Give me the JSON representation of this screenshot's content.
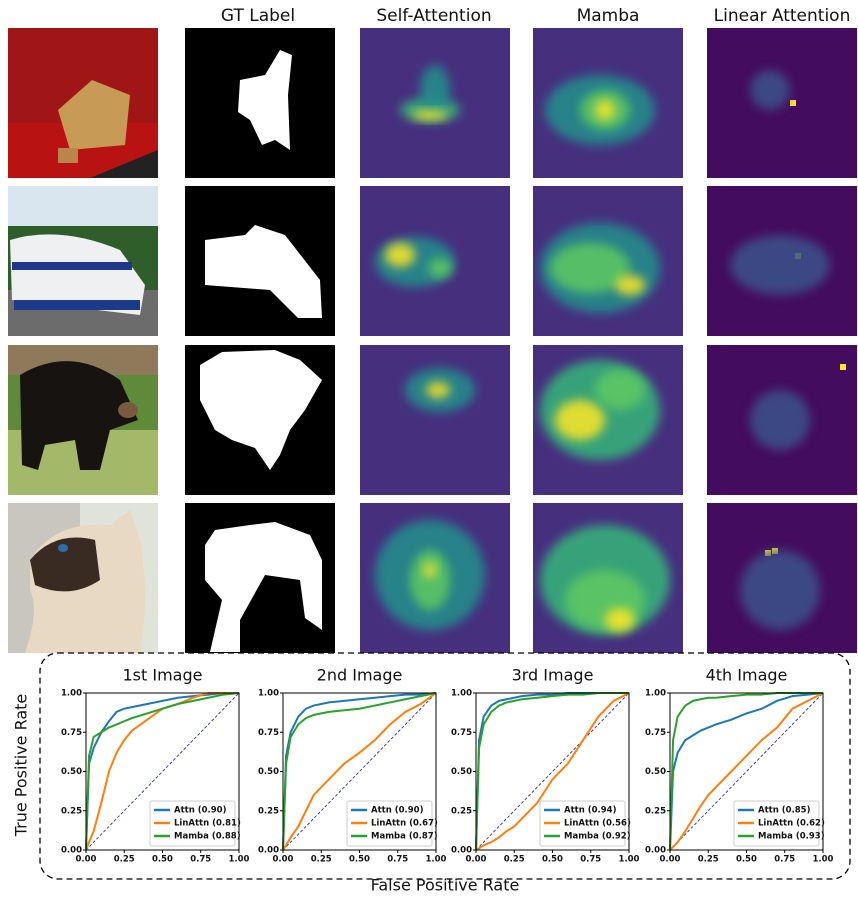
{
  "figure": {
    "column_headers": [
      "GT Label",
      "Self-Attention",
      "Mamba",
      "Linear Attention"
    ]
  },
  "xlabel": "False Positive Rate",
  "ylabel": "True Positive Rate",
  "chart_data": [
    {
      "type": "line",
      "title": "1st Image",
      "x": [
        0,
        0.02,
        0.05,
        0.1,
        0.15,
        0.2,
        0.25,
        0.3,
        0.4,
        0.5,
        0.6,
        0.7,
        0.8,
        0.9,
        1.0
      ],
      "series": [
        {
          "name": "Attn (0.90)",
          "color": "#1f77b4",
          "values": [
            0,
            0.55,
            0.65,
            0.75,
            0.82,
            0.88,
            0.9,
            0.91,
            0.93,
            0.95,
            0.97,
            0.98,
            0.99,
            1,
            1
          ]
        },
        {
          "name": "LinAttn (0.81)",
          "color": "#ff7f0e",
          "values": [
            0,
            0.05,
            0.12,
            0.3,
            0.5,
            0.62,
            0.7,
            0.76,
            0.83,
            0.9,
            0.93,
            0.97,
            1,
            1,
            1
          ]
        },
        {
          "name": "Mamba (0.88)",
          "color": "#2ca02c",
          "values": [
            0,
            0.6,
            0.72,
            0.75,
            0.78,
            0.8,
            0.82,
            0.84,
            0.87,
            0.9,
            0.93,
            0.95,
            0.97,
            0.99,
            1
          ]
        }
      ],
      "xlim": [
        0,
        1
      ],
      "ylim": [
        0,
        1
      ],
      "xticks": [
        {
          "value": 0,
          "label": "0.00"
        },
        {
          "value": 0.25,
          "label": "0.25"
        },
        {
          "value": 0.5,
          "label": "0.50"
        },
        {
          "value": 0.75,
          "label": "0.75"
        },
        {
          "value": 1,
          "label": "1.00"
        }
      ],
      "yticks": [
        {
          "value": 0,
          "label": "0.00"
        },
        {
          "value": 0.25,
          "label": "0.25"
        },
        {
          "value": 0.5,
          "label": "0.50"
        },
        {
          "value": 0.75,
          "label": "0.75"
        },
        {
          "value": 1,
          "label": "1.00"
        }
      ],
      "legend": "lower right"
    },
    {
      "type": "line",
      "title": "2nd Image",
      "x": [
        0,
        0.02,
        0.05,
        0.1,
        0.15,
        0.2,
        0.25,
        0.3,
        0.4,
        0.5,
        0.6,
        0.7,
        0.8,
        0.9,
        1.0
      ],
      "series": [
        {
          "name": "Attn (0.90)",
          "color": "#1f77b4",
          "values": [
            0,
            0.6,
            0.75,
            0.85,
            0.9,
            0.92,
            0.93,
            0.94,
            0.95,
            0.96,
            0.97,
            0.98,
            0.99,
            0.99,
            1
          ]
        },
        {
          "name": "LinAttn (0.67)",
          "color": "#ff7f0e",
          "values": [
            0,
            0.03,
            0.08,
            0.15,
            0.25,
            0.35,
            0.4,
            0.45,
            0.55,
            0.62,
            0.7,
            0.8,
            0.88,
            0.93,
            1
          ]
        },
        {
          "name": "Mamba (0.87)",
          "color": "#2ca02c",
          "values": [
            0,
            0.55,
            0.72,
            0.8,
            0.84,
            0.86,
            0.87,
            0.88,
            0.89,
            0.9,
            0.92,
            0.94,
            0.96,
            0.98,
            1
          ]
        }
      ],
      "xlim": [
        0,
        1
      ],
      "ylim": [
        0,
        1
      ],
      "xticks": [
        {
          "value": 0,
          "label": "0.00"
        },
        {
          "value": 0.25,
          "label": "0.25"
        },
        {
          "value": 0.5,
          "label": "0.50"
        },
        {
          "value": 0.75,
          "label": "0.75"
        },
        {
          "value": 1,
          "label": "1.00"
        }
      ],
      "yticks": [
        {
          "value": 0,
          "label": "0.00"
        },
        {
          "value": 0.25,
          "label": "0.25"
        },
        {
          "value": 0.5,
          "label": "0.50"
        },
        {
          "value": 0.75,
          "label": "0.75"
        },
        {
          "value": 1,
          "label": "1.00"
        }
      ],
      "legend": "lower right"
    },
    {
      "type": "line",
      "title": "3rd Image",
      "x": [
        0,
        0.02,
        0.05,
        0.1,
        0.15,
        0.2,
        0.25,
        0.3,
        0.4,
        0.5,
        0.6,
        0.7,
        0.8,
        0.9,
        1.0
      ],
      "series": [
        {
          "name": "Attn (0.94)",
          "color": "#1f77b4",
          "values": [
            0,
            0.7,
            0.85,
            0.92,
            0.95,
            0.96,
            0.97,
            0.98,
            0.99,
            0.99,
            1,
            1,
            1,
            1,
            1
          ]
        },
        {
          "name": "LinAttn (0.56)",
          "color": "#ff7f0e",
          "values": [
            0,
            0.01,
            0.03,
            0.05,
            0.08,
            0.12,
            0.15,
            0.2,
            0.3,
            0.45,
            0.55,
            0.7,
            0.85,
            0.95,
            1
          ]
        },
        {
          "name": "Mamba (0.92)",
          "color": "#2ca02c",
          "values": [
            0,
            0.65,
            0.8,
            0.88,
            0.92,
            0.94,
            0.95,
            0.96,
            0.97,
            0.98,
            0.99,
            0.99,
            1,
            1,
            1
          ]
        }
      ],
      "xlim": [
        0,
        1
      ],
      "ylim": [
        0,
        1
      ],
      "xticks": [
        {
          "value": 0,
          "label": "0.00"
        },
        {
          "value": 0.25,
          "label": "0.25"
        },
        {
          "value": 0.5,
          "label": "0.50"
        },
        {
          "value": 0.75,
          "label": "0.75"
        },
        {
          "value": 1,
          "label": "1.00"
        }
      ],
      "yticks": [
        {
          "value": 0,
          "label": "0.00"
        },
        {
          "value": 0.25,
          "label": "0.25"
        },
        {
          "value": 0.5,
          "label": "0.50"
        },
        {
          "value": 0.75,
          "label": "0.75"
        },
        {
          "value": 1,
          "label": "1.00"
        }
      ],
      "legend": "lower right"
    },
    {
      "type": "line",
      "title": "4th Image",
      "x": [
        0,
        0.02,
        0.05,
        0.1,
        0.15,
        0.2,
        0.25,
        0.3,
        0.4,
        0.5,
        0.6,
        0.7,
        0.8,
        0.9,
        1.0
      ],
      "series": [
        {
          "name": "Attn (0.85)",
          "color": "#1f77b4",
          "values": [
            0,
            0.5,
            0.62,
            0.7,
            0.73,
            0.76,
            0.78,
            0.8,
            0.83,
            0.87,
            0.9,
            0.95,
            0.98,
            0.99,
            1
          ]
        },
        {
          "name": "LinAttn (0.62)",
          "color": "#ff7f0e",
          "values": [
            0,
            0.02,
            0.05,
            0.12,
            0.2,
            0.28,
            0.35,
            0.4,
            0.5,
            0.6,
            0.7,
            0.78,
            0.9,
            0.95,
            1
          ]
        },
        {
          "name": "Mamba (0.93)",
          "color": "#2ca02c",
          "values": [
            0,
            0.7,
            0.85,
            0.92,
            0.95,
            0.96,
            0.97,
            0.97,
            0.98,
            0.99,
            0.99,
            1,
            1,
            1,
            1
          ]
        }
      ],
      "xlim": [
        0,
        1
      ],
      "ylim": [
        0,
        1
      ],
      "xticks": [
        {
          "value": 0,
          "label": "0.00"
        },
        {
          "value": 0.25,
          "label": "0.25"
        },
        {
          "value": 0.5,
          "label": "0.50"
        },
        {
          "value": 0.75,
          "label": "0.75"
        },
        {
          "value": 1,
          "label": "1.00"
        }
      ],
      "yticks": [
        {
          "value": 0,
          "label": "0.00"
        },
        {
          "value": 0.25,
          "label": "0.25"
        },
        {
          "value": 0.5,
          "label": "0.50"
        },
        {
          "value": 0.75,
          "label": "0.75"
        },
        {
          "value": 1,
          "label": "1.00"
        }
      ],
      "legend": "lower right"
    }
  ]
}
